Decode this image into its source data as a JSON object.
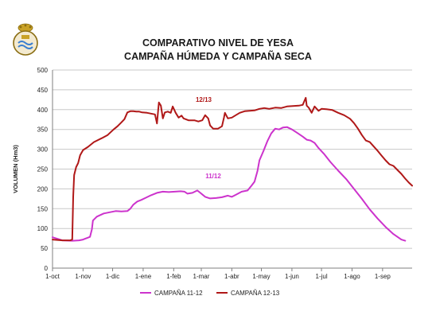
{
  "chart_data": {
    "type": "line",
    "title": "COMPARATIVO NIVEL DE YESA",
    "subtitle": "CAMPAÑA HÚMEDA Y CAMPAÑA SECA",
    "ylabel": "VOLUMEN (Hm3)",
    "xlabel": "",
    "ylim": [
      0,
      500
    ],
    "yticks": [
      "0",
      "50",
      "100",
      "150",
      "200",
      "250",
      "300",
      "350",
      "400",
      "450",
      "500"
    ],
    "xlim": [
      0,
      365
    ],
    "xtick_labels": [
      "1-oct",
      "1-nov",
      "1-dic",
      "1-ene",
      "1-feb",
      "1-mar",
      "1-abr",
      "1-may",
      "1-jun",
      "1-jul",
      "1-ago",
      "1-sep"
    ],
    "xtick_days": [
      0,
      31,
      61,
      92,
      123,
      151,
      182,
      212,
      243,
      273,
      304,
      335
    ],
    "grid": true,
    "legend_position": "bottom",
    "series": [
      {
        "name": "CAMPAÑA 11-12",
        "color": "#cc33cc",
        "label": "11/12",
        "points": [
          [
            0,
            78
          ],
          [
            10,
            70
          ],
          [
            20,
            69
          ],
          [
            27,
            70
          ],
          [
            31,
            72
          ],
          [
            33,
            74
          ],
          [
            35,
            76
          ],
          [
            38,
            79
          ],
          [
            40,
            98
          ],
          [
            41,
            120
          ],
          [
            45,
            130
          ],
          [
            52,
            138
          ],
          [
            58,
            141
          ],
          [
            64,
            144
          ],
          [
            70,
            143
          ],
          [
            76,
            144
          ],
          [
            79,
            150
          ],
          [
            82,
            160
          ],
          [
            86,
            168
          ],
          [
            90,
            172
          ],
          [
            95,
            178
          ],
          [
            100,
            184
          ],
          [
            106,
            190
          ],
          [
            112,
            193
          ],
          [
            118,
            192
          ],
          [
            124,
            193
          ],
          [
            130,
            194
          ],
          [
            134,
            193
          ],
          [
            137,
            188
          ],
          [
            142,
            190
          ],
          [
            147,
            196
          ],
          [
            150,
            190
          ],
          [
            155,
            180
          ],
          [
            160,
            176
          ],
          [
            166,
            177
          ],
          [
            172,
            179
          ],
          [
            178,
            183
          ],
          [
            182,
            180
          ],
          [
            186,
            185
          ],
          [
            192,
            193
          ],
          [
            198,
            196
          ],
          [
            202,
            208
          ],
          [
            205,
            218
          ],
          [
            208,
            245
          ],
          [
            210,
            272
          ],
          [
            214,
            295
          ],
          [
            218,
            320
          ],
          [
            222,
            340
          ],
          [
            226,
            352
          ],
          [
            230,
            350
          ],
          [
            234,
            355
          ],
          [
            238,
            356
          ],
          [
            243,
            350
          ],
          [
            248,
            342
          ],
          [
            254,
            332
          ],
          [
            258,
            324
          ],
          [
            262,
            322
          ],
          [
            266,
            316
          ],
          [
            270,
            303
          ],
          [
            276,
            287
          ],
          [
            282,
            268
          ],
          [
            290,
            246
          ],
          [
            298,
            225
          ],
          [
            306,
            200
          ],
          [
            314,
            175
          ],
          [
            322,
            148
          ],
          [
            330,
            125
          ],
          [
            338,
            104
          ],
          [
            346,
            86
          ],
          [
            354,
            72
          ],
          [
            358,
            69
          ]
        ]
      },
      {
        "name": "CAMPAÑA 12-13",
        "color": "#b01818",
        "label": "12/13",
        "points": [
          [
            0,
            72
          ],
          [
            10,
            70
          ],
          [
            18,
            70
          ],
          [
            20,
            72
          ],
          [
            21,
            180
          ],
          [
            22,
            235
          ],
          [
            24,
            255
          ],
          [
            26,
            265
          ],
          [
            28,
            285
          ],
          [
            31,
            298
          ],
          [
            36,
            306
          ],
          [
            42,
            318
          ],
          [
            50,
            328
          ],
          [
            56,
            336
          ],
          [
            62,
            350
          ],
          [
            66,
            358
          ],
          [
            70,
            368
          ],
          [
            73,
            376
          ],
          [
            76,
            393
          ],
          [
            79,
            396
          ],
          [
            82,
            396
          ],
          [
            85,
            395
          ],
          [
            88,
            395
          ],
          [
            91,
            393
          ],
          [
            96,
            392
          ],
          [
            100,
            390
          ],
          [
            104,
            388
          ],
          [
            106,
            365
          ],
          [
            108,
            418
          ],
          [
            110,
            410
          ],
          [
            112,
            378
          ],
          [
            114,
            393
          ],
          [
            117,
            395
          ],
          [
            120,
            392
          ],
          [
            122,
            408
          ],
          [
            125,
            392
          ],
          [
            128,
            380
          ],
          [
            131,
            385
          ],
          [
            133,
            378
          ],
          [
            138,
            373
          ],
          [
            144,
            373
          ],
          [
            148,
            370
          ],
          [
            152,
            373
          ],
          [
            155,
            386
          ],
          [
            158,
            378
          ],
          [
            160,
            360
          ],
          [
            163,
            352
          ],
          [
            168,
            352
          ],
          [
            172,
            358
          ],
          [
            174,
            380
          ],
          [
            175,
            392
          ],
          [
            178,
            378
          ],
          [
            182,
            380
          ],
          [
            186,
            386
          ],
          [
            190,
            392
          ],
          [
            195,
            396
          ],
          [
            200,
            397
          ],
          [
            205,
            398
          ],
          [
            210,
            402
          ],
          [
            215,
            404
          ],
          [
            220,
            402
          ],
          [
            226,
            405
          ],
          [
            232,
            404
          ],
          [
            238,
            408
          ],
          [
            244,
            409
          ],
          [
            250,
            410
          ],
          [
            254,
            412
          ],
          [
            257,
            430
          ],
          [
            258,
            410
          ],
          [
            260,
            405
          ],
          [
            263,
            392
          ],
          [
            266,
            408
          ],
          [
            270,
            397
          ],
          [
            273,
            402
          ],
          [
            278,
            401
          ],
          [
            284,
            399
          ],
          [
            290,
            392
          ],
          [
            296,
            386
          ],
          [
            302,
            377
          ],
          [
            306,
            366
          ],
          [
            310,
            352
          ],
          [
            314,
            336
          ],
          [
            318,
            322
          ],
          [
            322,
            318
          ],
          [
            326,
            307
          ],
          [
            330,
            296
          ],
          [
            334,
            284
          ],
          [
            338,
            272
          ],
          [
            342,
            262
          ],
          [
            346,
            258
          ],
          [
            350,
            248
          ],
          [
            354,
            238
          ],
          [
            358,
            226
          ],
          [
            362,
            215
          ],
          [
            365,
            208
          ]
        ]
      }
    ]
  }
}
